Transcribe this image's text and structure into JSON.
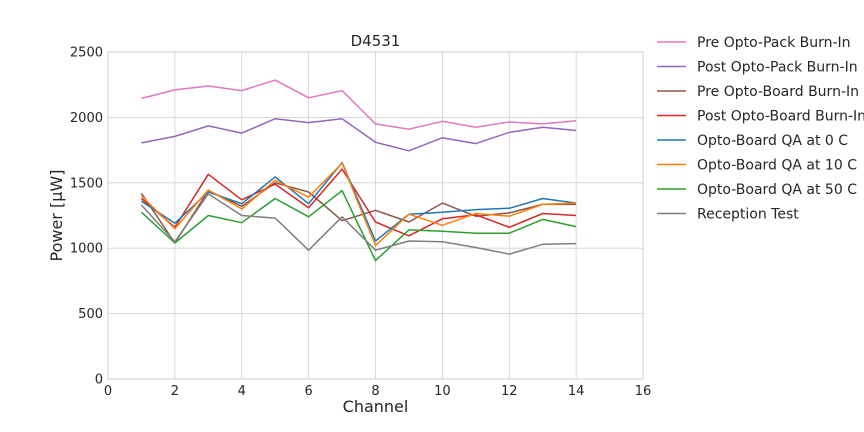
{
  "chart_data": {
    "type": "line",
    "title": "D4531",
    "xlabel": "Channel",
    "ylabel": "Power [μW]",
    "xlim": [
      0,
      16
    ],
    "ylim": [
      0,
      2500
    ],
    "xticks": [
      "0",
      "2",
      "4",
      "6",
      "8",
      "10",
      "12",
      "14",
      "16"
    ],
    "yticks": [
      "0",
      "500",
      "1000",
      "1500",
      "2000",
      "2500"
    ],
    "grid": true,
    "legend_position": "outside-right",
    "x": [
      1,
      2,
      3,
      4,
      5,
      6,
      7,
      8,
      9,
      10,
      11,
      12,
      13,
      14
    ],
    "series": [
      {
        "name": "Pre Opto-Pack Burn-In",
        "color": "#e377c2",
        "values": [
          2145,
          2210,
          2240,
          2205,
          2285,
          2150,
          2205,
          1950,
          1910,
          1970,
          1925,
          1965,
          1950,
          1975
        ]
      },
      {
        "name": "Post Opto-Pack Burn-In",
        "color": "#9467bd",
        "values": [
          1805,
          1855,
          1935,
          1880,
          1990,
          1960,
          1990,
          1810,
          1745,
          1845,
          1800,
          1885,
          1925,
          1900
        ]
      },
      {
        "name": "Pre Opto-Board Burn-In",
        "color": "#8c564b",
        "values": [
          1420,
          1040,
          1440,
          1320,
          1500,
          1430,
          1210,
          1290,
          1200,
          1345,
          1245,
          1270,
          1335,
          1335
        ]
      },
      {
        "name": "Post Opto-Board Burn-In",
        "color": "#d62728",
        "values": [
          1380,
          1160,
          1565,
          1370,
          1490,
          1310,
          1605,
          1200,
          1095,
          1225,
          1255,
          1160,
          1265,
          1250
        ]
      },
      {
        "name": "Opto-Board QA at 0 C",
        "color": "#1f77b4",
        "values": [
          1360,
          1190,
          1430,
          1340,
          1545,
          1340,
          1655,
          1055,
          1260,
          1275,
          1295,
          1305,
          1380,
          1345
        ]
      },
      {
        "name": "Opto-Board QA at 10 C",
        "color": "#ff7f0e",
        "values": [
          1400,
          1150,
          1445,
          1300,
          1520,
          1390,
          1650,
          1020,
          1260,
          1175,
          1265,
          1245,
          1335,
          1345
        ]
      },
      {
        "name": "Opto-Board QA at 50 C",
        "color": "#2ca02c",
        "values": [
          1275,
          1040,
          1250,
          1195,
          1380,
          1240,
          1440,
          905,
          1140,
          1130,
          1115,
          1115,
          1220,
          1165
        ]
      },
      {
        "name": "Reception Test",
        "color": "#7f7f7f",
        "values": [
          1330,
          1050,
          1415,
          1250,
          1230,
          985,
          1240,
          985,
          1055,
          1050,
          1005,
          955,
          1030,
          1035
        ]
      }
    ]
  }
}
